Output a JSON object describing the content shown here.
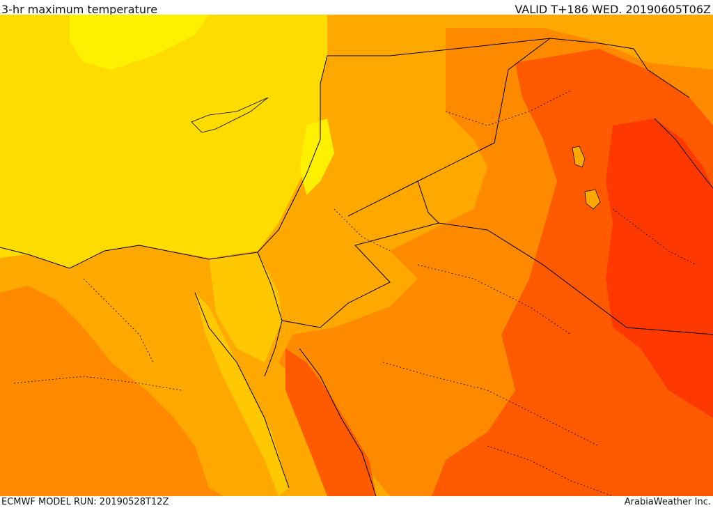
{
  "header": {
    "title": "3-hr maximum temperature",
    "valid_time": "VALID T+186 WED. 20190605T06Z"
  },
  "footer": {
    "model_run": "ECMWF MODEL RUN: 20190528T12Z",
    "credit": "ArabiaWeather Inc."
  },
  "colors": {
    "sea_yellow": "#ffdc00",
    "light_yellow": "#fff000",
    "amber": "#ffa800",
    "orange": "#ff8a00",
    "dark_orange": "#ff5a00",
    "red_orange": "#ff3800",
    "border_line": "#000000"
  }
}
